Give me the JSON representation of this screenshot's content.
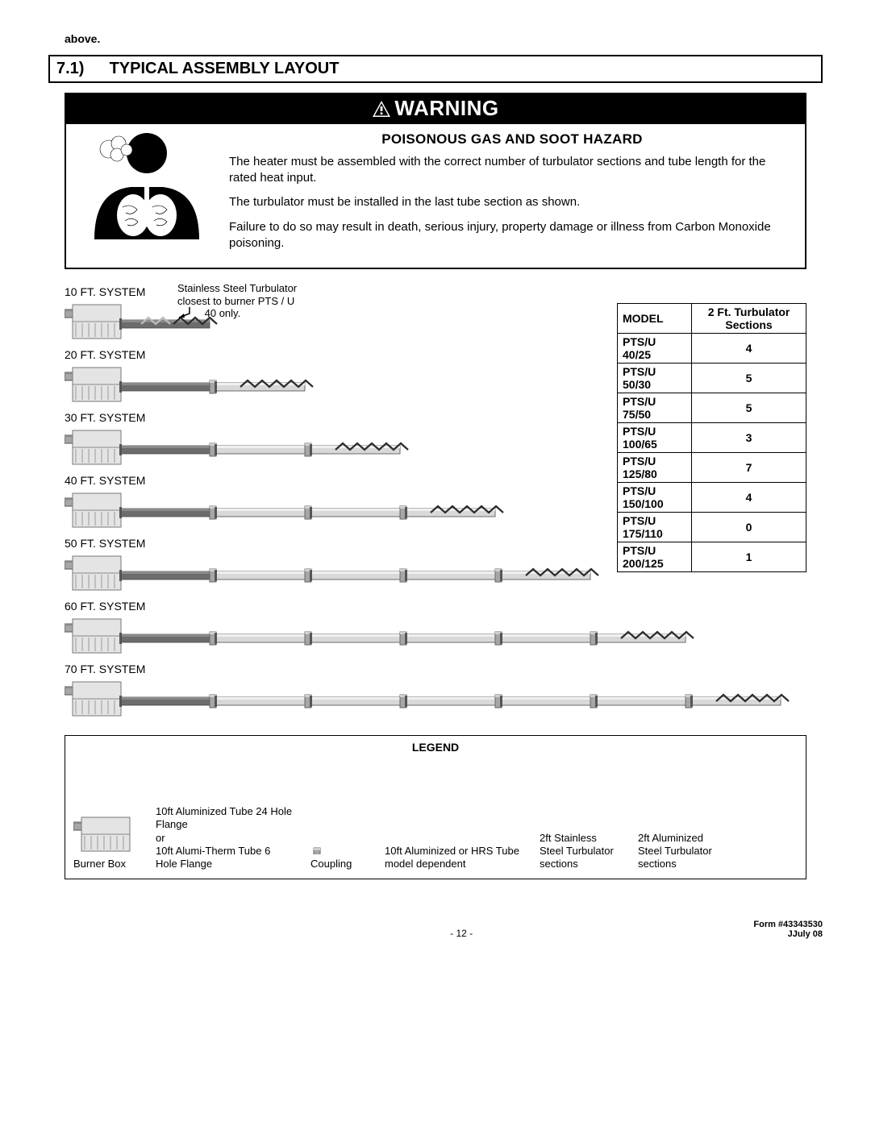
{
  "topword": "above.",
  "section": {
    "num": "7.1)",
    "title": "TYPICAL ASSEMBLY LAYOUT"
  },
  "warning": {
    "bar": "WARNING",
    "heading": "POISONOUS GAS AND SOOT HAZARD",
    "p1": "The heater must be assembled with the correct number of turbulator sections and tube length for the rated heat input.",
    "p2": "The turbulator must be installed in the last tube section as shown.",
    "p3": "Failure to do so may result in death, serious injury, property damage or illness from Carbon Monoxide poisoning."
  },
  "turb_note": {
    "l1": "Stainless Steel Turbulator",
    "l2": "closest to burner PTS / U",
    "l3": "40 only."
  },
  "colors": {
    "tube_dark": "#6c6c6c",
    "tube_light": "#d8d8d8",
    "tube_border": "#4a4a4a",
    "box_fill": "#e4e4e4",
    "box_hatch": "#9a9a9a",
    "coupling": "#a6a6a6",
    "zig_light": "#bcbcbc",
    "zig_dark": "#2b2b2b"
  },
  "systems": [
    {
      "label": "10 FT. SYSTEM",
      "tubes": [
        {
          "len": 110,
          "shade": "dark"
        }
      ],
      "zig": "light",
      "zig_extra": true
    },
    {
      "label": "20 FT. SYSTEM",
      "tubes": [
        {
          "len": 110,
          "shade": "dark"
        },
        {
          "len": 110,
          "shade": "light"
        }
      ],
      "zig": "dark"
    },
    {
      "label": "30 FT. SYSTEM",
      "tubes": [
        {
          "len": 110,
          "shade": "dark"
        },
        {
          "len": 110,
          "shade": "light"
        },
        {
          "len": 110,
          "shade": "light"
        }
      ],
      "zig": "dark"
    },
    {
      "label": "40 FT. SYSTEM",
      "tubes": [
        {
          "len": 110,
          "shade": "dark"
        },
        {
          "len": 110,
          "shade": "light"
        },
        {
          "len": 110,
          "shade": "light"
        },
        {
          "len": 110,
          "shade": "light"
        }
      ],
      "zig": "dark"
    },
    {
      "label": "50 FT. SYSTEM",
      "tubes": [
        {
          "len": 110,
          "shade": "dark"
        },
        {
          "len": 110,
          "shade": "light"
        },
        {
          "len": 110,
          "shade": "light"
        },
        {
          "len": 110,
          "shade": "light"
        },
        {
          "len": 110,
          "shade": "light"
        }
      ],
      "zig": "dark"
    },
    {
      "label": "60 FT. SYSTEM",
      "tubes": [
        {
          "len": 110,
          "shade": "dark"
        },
        {
          "len": 110,
          "shade": "light"
        },
        {
          "len": 110,
          "shade": "light"
        },
        {
          "len": 110,
          "shade": "light"
        },
        {
          "len": 110,
          "shade": "light"
        },
        {
          "len": 110,
          "shade": "light"
        }
      ],
      "zig": "dark"
    },
    {
      "label": "70 FT. SYSTEM",
      "tubes": [
        {
          "len": 110,
          "shade": "dark"
        },
        {
          "len": 110,
          "shade": "light"
        },
        {
          "len": 110,
          "shade": "light"
        },
        {
          "len": 110,
          "shade": "light"
        },
        {
          "len": 110,
          "shade": "light"
        },
        {
          "len": 110,
          "shade": "light"
        },
        {
          "len": 110,
          "shade": "light"
        }
      ],
      "zig": "dark"
    }
  ],
  "turb_table": {
    "h1": "MODEL",
    "h2": "2 Ft. Turbulator Sections",
    "rows": [
      {
        "m": "PTS/U 40/25",
        "s": "4"
      },
      {
        "m": "PTS/U 50/30",
        "s": "5"
      },
      {
        "m": "PTS/U 75/50",
        "s": "5"
      },
      {
        "m": "PTS/U 100/65",
        "s": "3"
      },
      {
        "m": "PTS/U 125/80",
        "s": "7"
      },
      {
        "m": "PTS/U 150/100",
        "s": "4"
      },
      {
        "m": "PTS/U 175/110",
        "s": "0"
      },
      {
        "m": "PTS/U 200/125",
        "s": "1"
      }
    ]
  },
  "legend": {
    "title": "LEGEND",
    "items": {
      "burner": "Burner Box",
      "dark_tube": "10ft Aluminized Tube 24 Hole Flange\nor\n10ft Alumi-Therm Tube 6 Hole Flange",
      "coupling": "Coupling",
      "light_tube": "10ft Aluminized or HRS Tube  model dependent",
      "zig_light": "2ft Stainless Steel Turbulator sections",
      "zig_dark": "2ft Aluminized Steel Turbulator sections"
    }
  },
  "footer": {
    "page": "- 12 -",
    "form": "Form #43343530",
    "date": "JJuly 08"
  }
}
